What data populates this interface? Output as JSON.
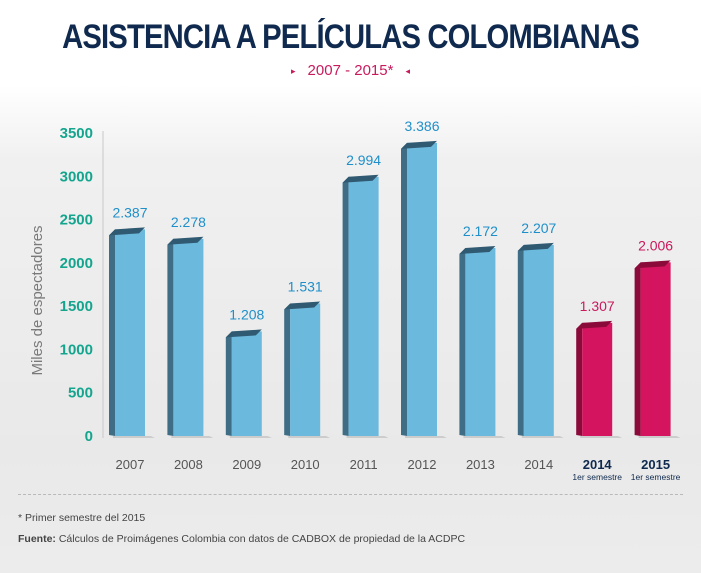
{
  "header": {
    "title": "ASISTENCIA A PELÍCULAS COLOMBIANAS",
    "subtitle": "2007 - 2015*"
  },
  "colors": {
    "title": "#0f2a4e",
    "subtitle": "#c81a5d",
    "axis_ticks": "#15a58e",
    "bar_blue_front": "#6cb9de",
    "bar_blue_side": "#3f6d86",
    "bar_blue_top": "#2f5a71",
    "bar_magenta_front": "#d4145e",
    "bar_magenta_side": "#8a0a3a",
    "label_blue": "#1f8fc9",
    "label_magenta": "#c81a5d"
  },
  "chart_data": {
    "type": "bar",
    "ylabel": "Miles de espectadores",
    "xlabel": "",
    "ylim": [
      0,
      3500
    ],
    "yticks": [
      0,
      500,
      1000,
      1500,
      2000,
      2500,
      3000,
      3500
    ],
    "categories": [
      "2007",
      "2008",
      "2009",
      "2010",
      "2011",
      "2012",
      "2013",
      "2014",
      "2014",
      "2015"
    ],
    "category_sublabels": [
      "",
      "",
      "",
      "",
      "",
      "",
      "",
      "",
      "1er semestre",
      "1er semestre"
    ],
    "highlighted": [
      false,
      false,
      false,
      false,
      false,
      false,
      false,
      false,
      true,
      true
    ],
    "values": [
      2387,
      2278,
      1208,
      1531,
      2994,
      3386,
      2172,
      2207,
      1307,
      2006
    ],
    "value_labels": [
      "2.387",
      "2.278",
      "1.208",
      "1.531",
      "2.994",
      "3.386",
      "2.172",
      "2.207",
      "1.307",
      "2.006"
    ],
    "grid": false,
    "legend": "none"
  },
  "footer": {
    "note": "* Primer semestre del 2015",
    "source_label": "Fuente:",
    "source_text": " Cálculos de Proimágenes Colombia con datos de CADBOX de propiedad de la ACDPC"
  }
}
